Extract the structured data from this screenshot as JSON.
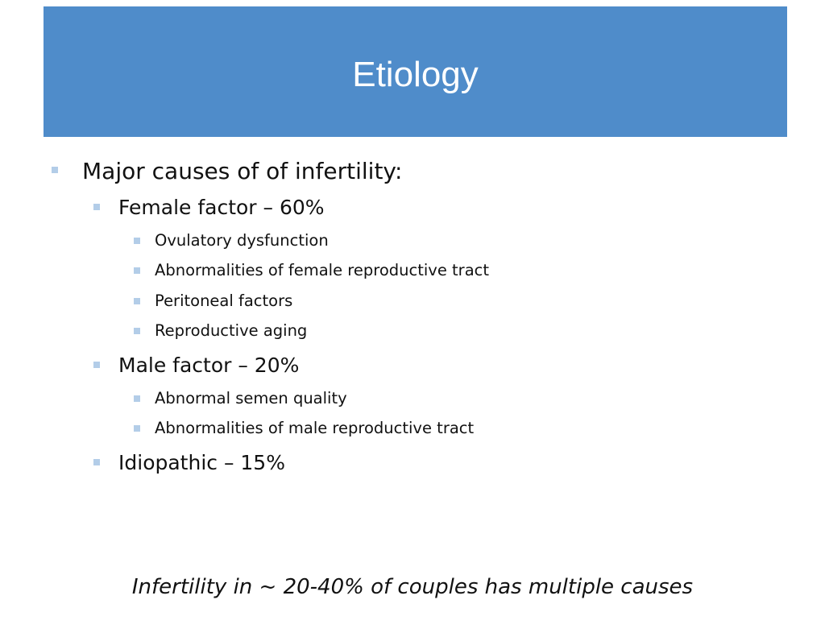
{
  "header": {
    "title": "Etiology"
  },
  "bullets": [
    {
      "level": 0,
      "text": "Major causes of of infertility:"
    },
    {
      "level": 1,
      "text": "Female factor – 60%"
    },
    {
      "level": 2,
      "text": "Ovulatory dysfunction"
    },
    {
      "level": 2,
      "text": "Abnormalities of female reproductive tract"
    },
    {
      "level": 2,
      "text": "Peritoneal factors"
    },
    {
      "level": 2,
      "text": "Reproductive aging"
    },
    {
      "level": 1,
      "text": "Male factor – 20%"
    },
    {
      "level": 2,
      "text": "Abnormal semen quality"
    },
    {
      "level": 2,
      "text": "Abnormalities of male reproductive tract"
    },
    {
      "level": 1,
      "text": "Idiopathic – 15%"
    }
  ],
  "footnote": "Infertility in ~ 20-40% of couples has multiple causes"
}
